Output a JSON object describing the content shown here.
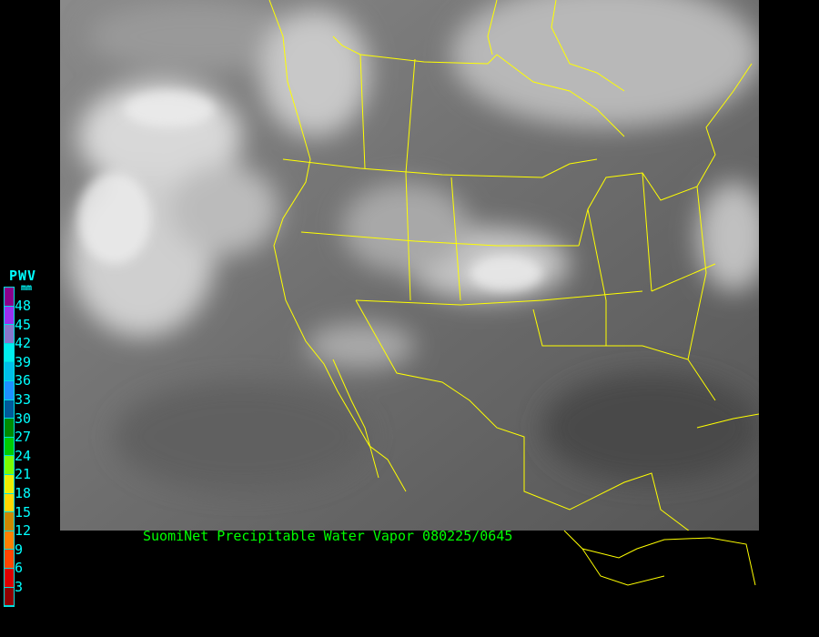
{
  "caption": "SuomiNet Precipitable Water Vapor 080225/0645",
  "legend": {
    "title": "PWV",
    "unit": "mm",
    "ticks": [
      "48",
      "45",
      "42",
      "39",
      "36",
      "33",
      "30",
      "27",
      "24",
      "21",
      "18",
      "15",
      "12",
      "9",
      "6",
      "3"
    ],
    "colors": [
      "#8b008b",
      "#9a30f0",
      "#8877cc",
      "#00eeee",
      "#00bfe8",
      "#1e90ff",
      "#005a9a",
      "#008a00",
      "#00cc00",
      "#7cfc00",
      "#eeee00",
      "#ffd700",
      "#cc8800",
      "#ff8000",
      "#ff4500",
      "#dd0000",
      "#900000"
    ]
  },
  "map": {
    "imagery": "infrared satellite grayscale",
    "boundary_color": "#ffff00",
    "background": "#000000"
  }
}
